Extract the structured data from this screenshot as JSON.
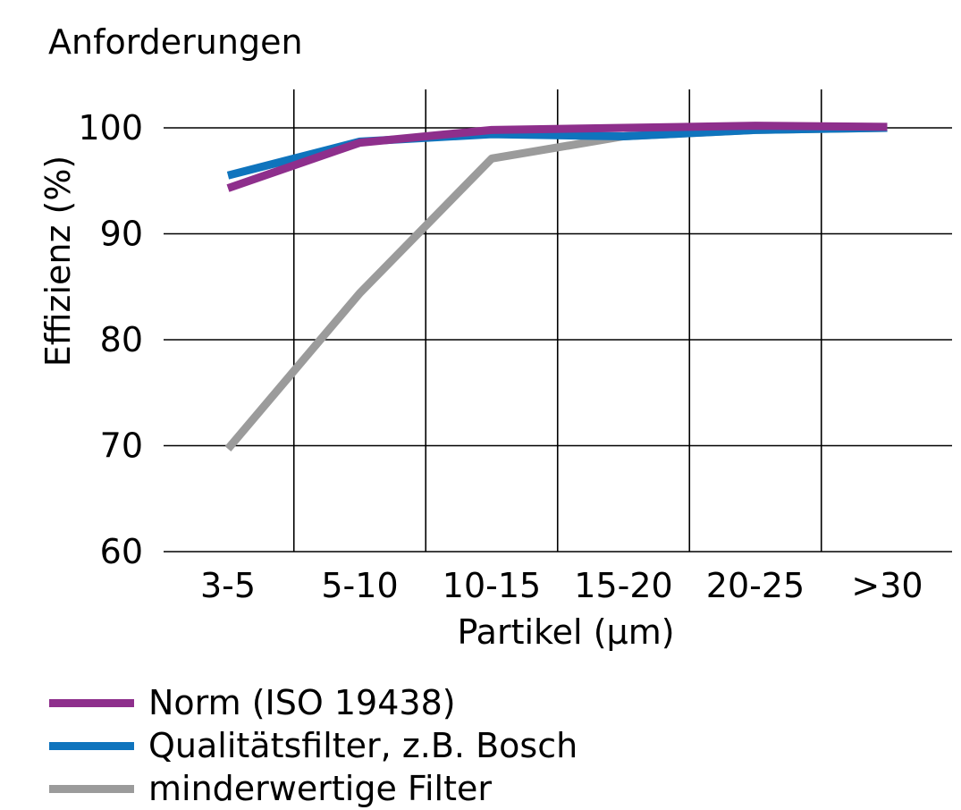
{
  "chart_data": {
    "type": "line",
    "title": "Anforderungen",
    "xlabel": "Partikel (µm)",
    "ylabel": "Effizienz (%)",
    "categories": [
      "3-5",
      "5-10",
      "10-15",
      "15-20",
      "20-25",
      ">30"
    ],
    "ylim": [
      60,
      100
    ],
    "yticks": [
      60,
      70,
      80,
      90,
      100
    ],
    "grid": true,
    "legend_position": "bottom-left",
    "series": [
      {
        "name": "Norm (ISO 19438)",
        "color": "#8e2f8c",
        "values": [
          94.3,
          98.6,
          99.8,
          100.0,
          100.2,
          100.1
        ]
      },
      {
        "name": "Qualitätsfilter, z.B. Bosch",
        "color": "#0f74bd",
        "values": [
          95.5,
          98.7,
          99.4,
          99.2,
          99.8,
          100.0
        ]
      },
      {
        "name": "minderwertige Filter",
        "color": "#9b9b9b",
        "values": [
          69.7,
          84.4,
          97.1,
          99.2,
          99.8,
          100.0
        ]
      }
    ]
  }
}
